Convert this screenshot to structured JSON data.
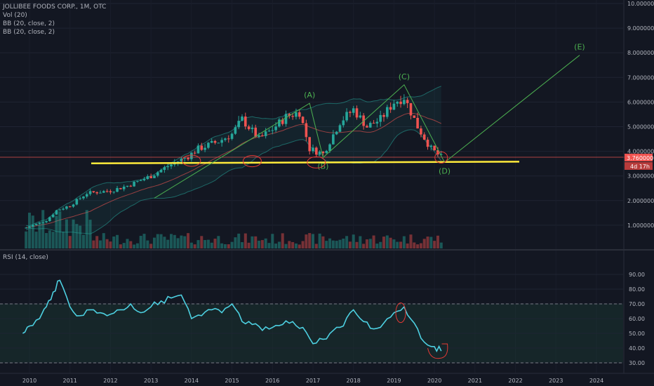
{
  "legend": {
    "symbol": "JOLLIBEE FOODS CORP., 1M, OTC",
    "volume": "Vol (20)",
    "bb1": "BB (20, close, 2)",
    "bb2": "BB (20, close, 2)",
    "rsi": "RSI (14, close)"
  },
  "price_tag": {
    "price": "3.760000",
    "countdown": "4d 17h"
  },
  "colors": {
    "background": "#131722",
    "up": "#26a69a",
    "down": "#ef5350",
    "bb_band": "#26a69a",
    "support": "#ffeb3b",
    "elliott": "#4caf50",
    "rsi_line": "#4dd0e1",
    "annotation": "#e53935"
  },
  "chart_data": [
    {
      "type": "candlestick",
      "title": "JOLLIBEE FOODS CORP., 1M, OTC",
      "ylim": [
        0.0,
        10.0
      ],
      "y_ticks": [
        "1.000000",
        "2.000000",
        "3.000000",
        "4.000000",
        "5.000000",
        "6.000000",
        "7.000000",
        "8.000000",
        "9.000000",
        "10.000000"
      ],
      "x_ticks": [
        "2010",
        "2011",
        "2012",
        "2013",
        "2014",
        "2015",
        "2016",
        "2017",
        "2018",
        "2019",
        "2020",
        "2021",
        "2022",
        "2023",
        "2024"
      ],
      "price_path": [
        [
          "2009-12",
          0.9
        ],
        [
          "2010-06",
          1.2
        ],
        [
          "2010-09",
          1.6
        ],
        [
          "2011-01",
          1.8
        ],
        [
          "2011-06",
          2.3
        ],
        [
          "2012-01",
          2.4
        ],
        [
          "2012-06",
          2.6
        ],
        [
          "2013-01",
          3.0
        ],
        [
          "2013-06",
          3.4
        ],
        [
          "2013-12",
          3.8
        ],
        [
          "2014-03",
          4.1
        ],
        [
          "2014-09",
          4.4
        ],
        [
          "2015-01",
          4.7
        ],
        [
          "2015-04",
          5.3
        ],
        [
          "2015-09",
          4.5
        ],
        [
          "2016-01",
          4.9
        ],
        [
          "2016-05",
          5.4
        ],
        [
          "2016-09",
          5.6
        ],
        [
          "2016-12",
          4.1
        ],
        [
          "2017-04",
          3.9
        ],
        [
          "2017-09",
          5.2
        ],
        [
          "2018-01",
          5.7
        ],
        [
          "2018-05",
          5.0
        ],
        [
          "2018-09",
          5.3
        ],
        [
          "2019-01",
          6.0
        ],
        [
          "2019-04",
          6.2
        ],
        [
          "2019-08",
          5.0
        ],
        [
          "2019-12",
          4.1
        ],
        [
          "2020-03",
          3.76
        ]
      ],
      "annotations": {
        "support_level": 3.55,
        "current_price": 3.76,
        "elliott_waves": [
          {
            "label": "(A)",
            "date": "2016-12",
            "value": 5.95
          },
          {
            "label": "(B)",
            "date": "2017-04",
            "value": 3.75
          },
          {
            "label": "(C)",
            "date": "2019-04",
            "value": 6.7
          },
          {
            "label": "(D)",
            "date": "2020-04",
            "value": 3.55
          },
          {
            "label": "(E)",
            "date": "2023-08",
            "value": 7.9
          }
        ]
      }
    },
    {
      "type": "line",
      "title": "RSI (14, close)",
      "ylim": [
        25,
        92
      ],
      "y_ticks": [
        "30.00",
        "40.00",
        "50.00",
        "60.00",
        "70.00",
        "80.00",
        "90.00"
      ],
      "reference_lines": [
        70,
        30
      ],
      "series": [
        {
          "x": [
            "2009-11",
            "2010-01",
            "2010-04",
            "2010-06",
            "2010-08",
            "2010-10",
            "2011-01",
            "2011-04",
            "2011-07",
            "2011-10",
            "2012-01",
            "2012-04",
            "2012-07",
            "2012-10",
            "2013-01",
            "2013-04",
            "2013-07",
            "2013-10",
            "2014-01",
            "2014-04",
            "2014-07",
            "2014-10",
            "2015-01",
            "2015-04",
            "2015-07",
            "2015-10",
            "2016-01",
            "2016-04",
            "2016-07",
            "2016-10",
            "2017-01",
            "2017-04",
            "2017-07",
            "2017-10",
            "2018-01",
            "2018-04",
            "2018-07",
            "2018-10",
            "2019-01",
            "2019-04",
            "2019-07",
            "2019-10",
            "2020-01",
            "2020-03"
          ],
          "values": [
            50,
            55,
            60,
            68,
            78,
            86,
            68,
            62,
            66,
            64,
            63,
            66,
            70,
            64,
            68,
            72,
            74,
            76,
            60,
            62,
            66,
            64,
            70,
            58,
            56,
            52,
            54,
            56,
            58,
            54,
            43,
            46,
            52,
            55,
            66,
            58,
            53,
            57,
            64,
            68,
            57,
            44,
            41,
            38
          ]
        }
      ]
    }
  ]
}
